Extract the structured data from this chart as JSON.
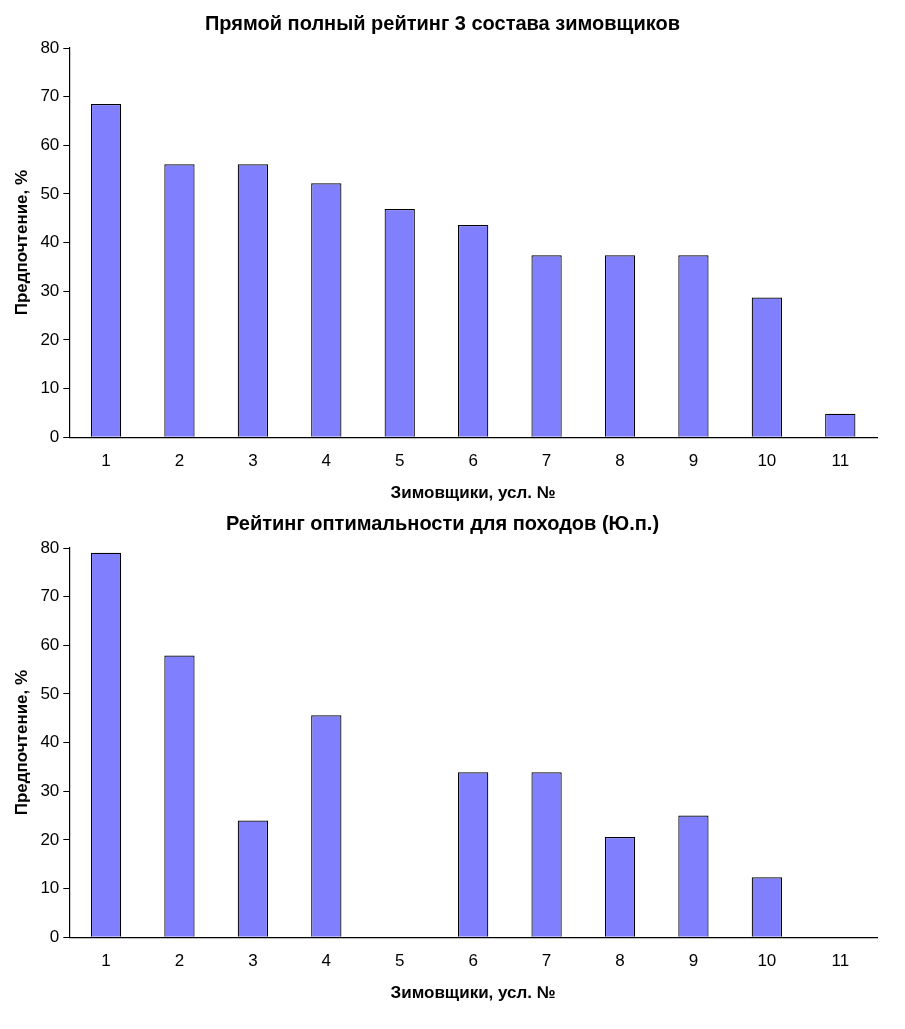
{
  "chart_data": [
    {
      "type": "bar",
      "title": "Прямой полный рейтинг 3 состава зимовщиков",
      "xlabel": "Зимовщики, усл. №",
      "ylabel": "Предпочтение, %",
      "categories": [
        "1",
        "2",
        "3",
        "4",
        "5",
        "6",
        "7",
        "8",
        "9",
        "10",
        "11"
      ],
      "values": [
        68.5,
        56.1,
        56.1,
        52.2,
        46.9,
        43.6,
        37.4,
        37.4,
        37.4,
        28.7,
        4.8
      ],
      "color": "#8080ff",
      "ylim": [
        0,
        80
      ],
      "yticks": [
        0,
        10,
        20,
        30,
        40,
        50,
        60,
        70,
        80
      ],
      "grid": false,
      "legend": false
    },
    {
      "type": "bar",
      "title": "Рейтинг оптимальности для походов (Ю.п.)",
      "xlabel": "Зимовщики, усл. №",
      "ylabel": "Предпочтение, %",
      "categories": [
        "1",
        "2",
        "3",
        "4",
        "5",
        "6",
        "7",
        "8",
        "9",
        "10",
        "11"
      ],
      "values": [
        79.0,
        57.9,
        24.0,
        45.6,
        0,
        33.9,
        33.9,
        20.6,
        25.0,
        12.3,
        0
      ],
      "color": "#8080ff",
      "ylim": [
        0,
        80
      ],
      "yticks": [
        0,
        10,
        20,
        30,
        40,
        50,
        60,
        70,
        80
      ],
      "grid": false,
      "legend": false
    }
  ]
}
